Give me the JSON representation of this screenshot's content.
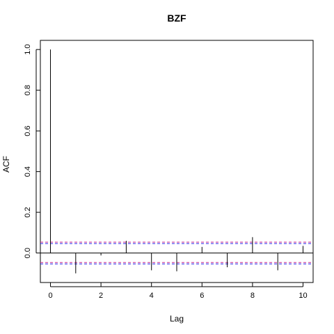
{
  "chart_data": {
    "type": "bar",
    "title": "BZF",
    "xlabel": "Lag",
    "ylabel": "ACF",
    "x": [
      0,
      1,
      2,
      3,
      4,
      5,
      6,
      7,
      8,
      9,
      10
    ],
    "values": [
      1.0,
      -0.1,
      -0.012,
      0.06,
      -0.085,
      -0.09,
      0.03,
      -0.07,
      0.078,
      -0.085,
      0.035
    ],
    "xlim": [
      -0.4,
      10.4
    ],
    "ylim": [
      -0.145,
      1.045
    ],
    "x_ticks": [
      "0",
      "2",
      "4",
      "6",
      "8",
      "10"
    ],
    "y_ticks": [
      "0.0",
      "0.2",
      "0.4",
      "0.6",
      "0.8",
      "1.0"
    ],
    "confidence_bounds": [
      0.05,
      -0.05
    ],
    "confidence_color": "#2525e8",
    "confidence_color_2": "#cc2a8e",
    "bar_color": "#000000",
    "grid": false,
    "legend": "none"
  }
}
